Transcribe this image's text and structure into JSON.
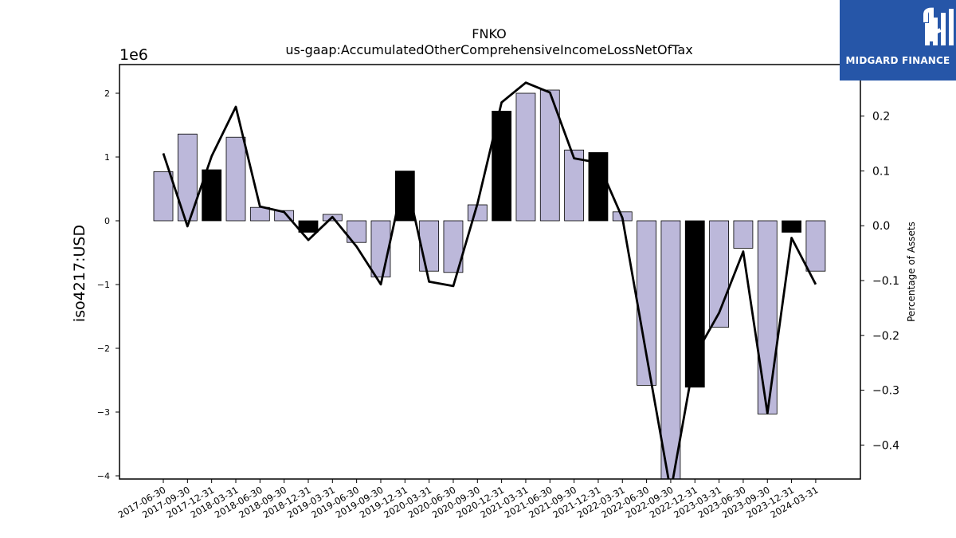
{
  "brand": {
    "logo_text": "MIDGARD FINANCE",
    "logo_color": "#2656a8"
  },
  "chart_data": {
    "type": "bar",
    "title": "FNKO",
    "subtitle": "us-gaap:AccumulatedOtherComprehensiveIncomeLossNetOfTax",
    "ylabel": "iso4217:USD",
    "y2label": "Percentage of Assets",
    "y_offset_label": "1e6",
    "ylim": [
      -4.05,
      2.45
    ],
    "y2lim": [
      -0.462,
      0.294
    ],
    "y_ticks": [
      2,
      1,
      0,
      -1,
      -2,
      -3,
      -4
    ],
    "y_tick_labels": [
      "2",
      "1",
      "0",
      "−1",
      "−2",
      "−3",
      "−4"
    ],
    "y2_ticks": [
      0.2,
      0.1,
      0.0,
      -0.1,
      -0.2,
      -0.3,
      -0.4
    ],
    "y2_tick_labels": [
      "0.2",
      "0.1",
      "0.0",
      "−0.1",
      "−0.2",
      "−0.3",
      "−0.4"
    ],
    "categories": [
      "2017-06-30",
      "2017-09-30",
      "2017-12-31",
      "2018-03-31",
      "2018-06-30",
      "2018-09-30",
      "2018-12-31",
      "2019-03-31",
      "2019-06-30",
      "2019-09-30",
      "2019-12-31",
      "2020-03-31",
      "2020-06-30",
      "2020-09-30",
      "2020-12-31",
      "2021-03-31",
      "2021-06-30",
      "2021-09-30",
      "2021-12-31",
      "2022-03-31",
      "2022-06-30",
      "2022-09-30",
      "2022-12-31",
      "2023-03-31",
      "2023-06-30",
      "2023-09-30",
      "2023-12-31",
      "2024-03-31"
    ],
    "values": [
      0.77,
      1.36,
      0.8,
      1.31,
      0.21,
      0.16,
      -0.18,
      0.1,
      -0.34,
      -0.88,
      0.78,
      -0.79,
      -0.81,
      0.25,
      1.72,
      2.0,
      2.05,
      1.11,
      1.07,
      0.14,
      -2.58,
      -4.1,
      -2.61,
      -1.67,
      -0.43,
      -3.03,
      -0.18,
      -0.79
    ],
    "highlight": [
      false,
      false,
      true,
      false,
      false,
      false,
      true,
      false,
      false,
      false,
      true,
      false,
      false,
      false,
      true,
      false,
      false,
      false,
      true,
      false,
      false,
      false,
      true,
      false,
      false,
      false,
      true,
      false
    ],
    "series": [
      {
        "name": "Percentage of Assets",
        "axis": "right",
        "values": [
          0.132,
          -0.001,
          0.127,
          0.217,
          0.035,
          0.025,
          -0.026,
          0.016,
          -0.038,
          -0.107,
          0.095,
          -0.102,
          -0.11,
          0.04,
          0.225,
          0.261,
          0.243,
          0.123,
          0.115,
          0.014,
          -0.237,
          -0.485,
          -0.237,
          -0.159,
          -0.047,
          -0.342,
          -0.022,
          -0.107
        ]
      }
    ],
    "colors": {
      "bar": "#bcb8da",
      "bar_highlight": "#000000",
      "line": "#000000"
    },
    "grid": false
  }
}
